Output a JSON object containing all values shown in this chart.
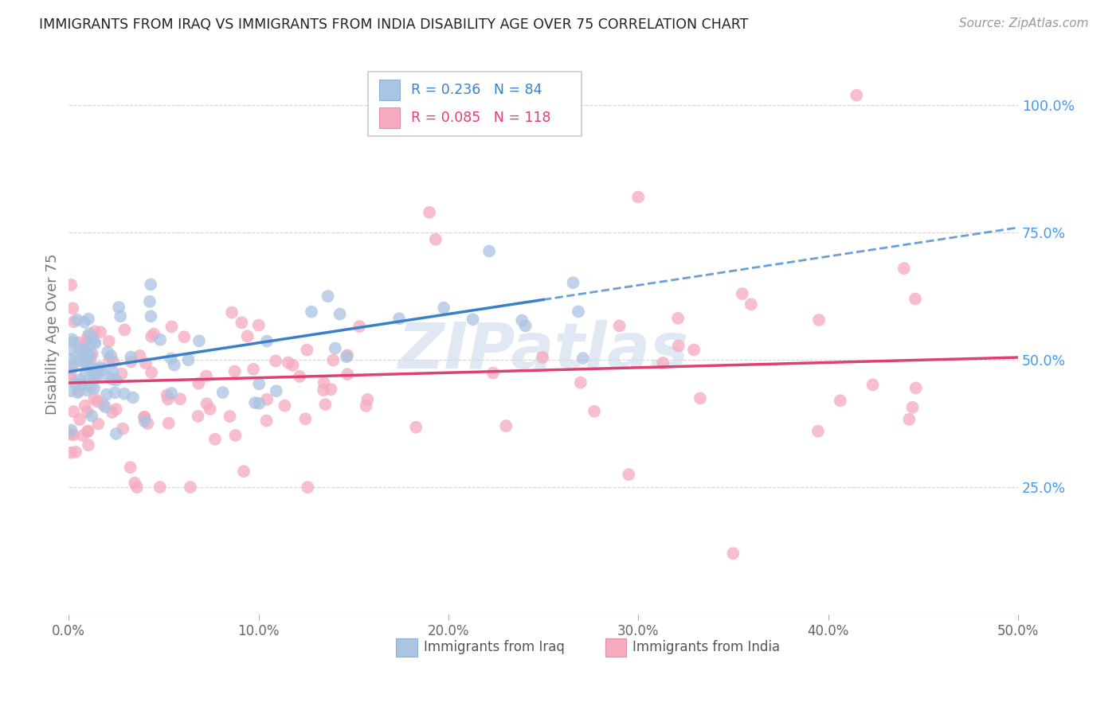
{
  "title": "IMMIGRANTS FROM IRAQ VS IMMIGRANTS FROM INDIA DISABILITY AGE OVER 75 CORRELATION CHART",
  "source": "Source: ZipAtlas.com",
  "ylabel": "Disability Age Over 75",
  "x_tick_vals": [
    0.0,
    0.1,
    0.2,
    0.3,
    0.4,
    0.5
  ],
  "x_tick_labels": [
    "0.0%",
    "10.0%",
    "20.0%",
    "30.0%",
    "40.0%",
    "50.0%"
  ],
  "y_tick_vals": [
    0.25,
    0.5,
    0.75,
    1.0
  ],
  "y_tick_labels": [
    "25.0%",
    "50.0%",
    "75.0%",
    "100.0%"
  ],
  "xlim": [
    0.0,
    0.5
  ],
  "ylim": [
    0.0,
    1.1
  ],
  "legend_iraq_r": "0.236",
  "legend_iraq_n": "84",
  "legend_india_r": "0.085",
  "legend_india_n": "118",
  "iraq_color": "#aac4e2",
  "india_color": "#f5aabe",
  "iraq_line_color": "#3a7fca",
  "india_line_color": "#e04070",
  "iraq_line_solid_end": 0.25,
  "iraq_line_x0": 0.0,
  "iraq_line_y0": 0.477,
  "iraq_line_x1": 0.5,
  "iraq_line_y1": 0.76,
  "india_line_x0": 0.0,
  "india_line_y0": 0.455,
  "india_line_x1": 0.5,
  "india_line_y1": 0.505,
  "background_color": "#ffffff",
  "grid_color": "#cccccc",
  "right_axis_color": "#4499ee",
  "watermark_color": "#c8d8ea",
  "watermark_alpha": 0.55
}
